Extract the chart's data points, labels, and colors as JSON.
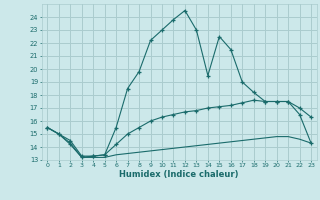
{
  "xlabel": "Humidex (Indice chaleur)",
  "bg_color": "#cce8ea",
  "grid_color": "#aaccce",
  "line_color": "#1a6b6b",
  "line1_x": [
    0,
    1,
    2,
    3,
    4,
    5,
    6,
    7,
    8,
    9,
    10,
    11,
    12,
    13,
    14,
    15,
    16,
    17,
    18,
    19,
    20,
    21,
    22,
    23
  ],
  "line1_y": [
    15.5,
    15.0,
    14.2,
    13.2,
    13.3,
    13.4,
    15.5,
    18.5,
    19.8,
    22.2,
    23.0,
    23.8,
    24.5,
    23.0,
    19.5,
    22.5,
    21.5,
    19.0,
    18.2,
    17.5,
    17.5,
    17.5,
    16.5,
    14.3
  ],
  "line2_x": [
    0,
    1,
    2,
    3,
    4,
    5,
    6,
    7,
    8,
    9,
    10,
    11,
    12,
    13,
    14,
    15,
    16,
    17,
    18,
    19,
    20,
    21,
    22,
    23
  ],
  "line2_y": [
    15.5,
    15.0,
    14.5,
    13.3,
    13.3,
    13.4,
    14.2,
    15.0,
    15.5,
    16.0,
    16.3,
    16.5,
    16.7,
    16.8,
    17.0,
    17.1,
    17.2,
    17.4,
    17.6,
    17.5,
    17.5,
    17.5,
    17.0,
    16.3
  ],
  "line3_x": [
    0,
    1,
    2,
    3,
    4,
    5,
    6,
    7,
    8,
    9,
    10,
    11,
    12,
    13,
    14,
    15,
    16,
    17,
    18,
    19,
    20,
    21,
    22,
    23
  ],
  "line3_y": [
    15.5,
    15.0,
    14.3,
    13.2,
    13.2,
    13.2,
    13.4,
    13.5,
    13.6,
    13.7,
    13.8,
    13.9,
    14.0,
    14.1,
    14.2,
    14.3,
    14.4,
    14.5,
    14.6,
    14.7,
    14.8,
    14.8,
    14.6,
    14.3
  ],
  "ylim": [
    13,
    25
  ],
  "xlim": [
    -0.5,
    23.5
  ],
  "yticks": [
    13,
    14,
    15,
    16,
    17,
    18,
    19,
    20,
    21,
    22,
    23,
    24
  ],
  "xticks": [
    0,
    1,
    2,
    3,
    4,
    5,
    6,
    7,
    8,
    9,
    10,
    11,
    12,
    13,
    14,
    15,
    16,
    17,
    18,
    19,
    20,
    21,
    22,
    23
  ]
}
